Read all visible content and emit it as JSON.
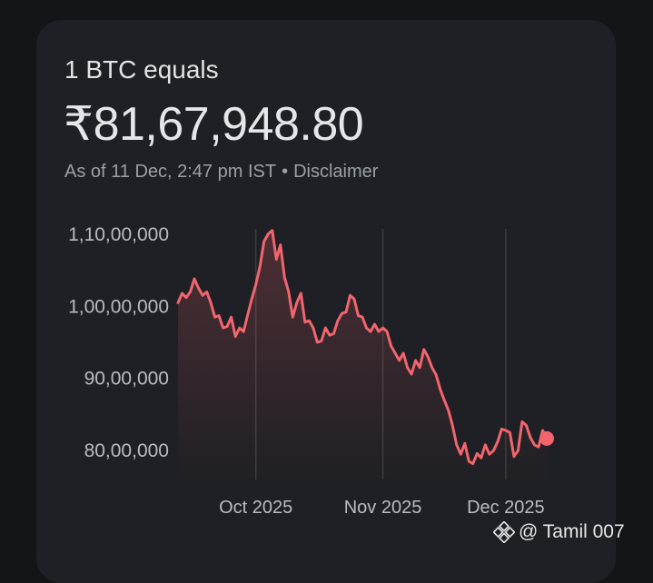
{
  "header": {
    "title": "1 BTC equals",
    "price": "₹81,67,948.80",
    "as_of": "As of 11 Dec, 2:47 pm IST",
    "separator": "•",
    "disclaimer": "Disclaimer"
  },
  "watermark": {
    "text": "@ Tamil 007",
    "icon": "binance-logo-icon"
  },
  "colors": {
    "line": "#f2656d",
    "marker": "#f2656d",
    "background": "#141519",
    "card": "#1f2025"
  },
  "chart_data": {
    "type": "line",
    "title": "",
    "xlabel": "",
    "ylabel": "",
    "y_tick_labels": [
      "80,00,000",
      "90,00,000",
      "1,00,00,000",
      "1,10,00,000"
    ],
    "y_ticks": [
      8000000,
      9000000,
      10000000,
      11000000
    ],
    "x_tick_labels": [
      "Oct 2025",
      "Nov 2025",
      "Dec 2025"
    ],
    "x_ticks": [
      "2025-10-01",
      "2025-11-01",
      "2025-12-01"
    ],
    "ylim": [
      7600000,
      11400000
    ],
    "xlim": [
      "2025-09-12",
      "2025-12-11"
    ],
    "grid": "vertical",
    "series": [
      {
        "name": "",
        "x": [
          "2025-09-12",
          "2025-09-13",
          "2025-09-14",
          "2025-09-15",
          "2025-09-16",
          "2025-09-17",
          "2025-09-18",
          "2025-09-19",
          "2025-09-20",
          "2025-09-21",
          "2025-09-22",
          "2025-09-23",
          "2025-09-24",
          "2025-09-25",
          "2025-09-26",
          "2025-09-27",
          "2025-09-28",
          "2025-09-29",
          "2025-09-30",
          "2025-10-01",
          "2025-10-02",
          "2025-10-03",
          "2025-10-04",
          "2025-10-05",
          "2025-10-06",
          "2025-10-07",
          "2025-10-08",
          "2025-10-09",
          "2025-10-10",
          "2025-10-11",
          "2025-10-12",
          "2025-10-13",
          "2025-10-14",
          "2025-10-15",
          "2025-10-16",
          "2025-10-17",
          "2025-10-18",
          "2025-10-19",
          "2025-10-20",
          "2025-10-21",
          "2025-10-22",
          "2025-10-23",
          "2025-10-24",
          "2025-10-25",
          "2025-10-26",
          "2025-10-27",
          "2025-10-28",
          "2025-10-29",
          "2025-10-30",
          "2025-10-31",
          "2025-11-01",
          "2025-11-02",
          "2025-11-03",
          "2025-11-04",
          "2025-11-05",
          "2025-11-06",
          "2025-11-07",
          "2025-11-08",
          "2025-11-09",
          "2025-11-10",
          "2025-11-11",
          "2025-11-12",
          "2025-11-13",
          "2025-11-14",
          "2025-11-15",
          "2025-11-16",
          "2025-11-17",
          "2025-11-18",
          "2025-11-19",
          "2025-11-20",
          "2025-11-21",
          "2025-11-22",
          "2025-11-23",
          "2025-11-24",
          "2025-11-25",
          "2025-11-26",
          "2025-11-27",
          "2025-11-28",
          "2025-11-29",
          "2025-11-30",
          "2025-12-01",
          "2025-12-02",
          "2025-12-03",
          "2025-12-04",
          "2025-12-05",
          "2025-12-06",
          "2025-12-07",
          "2025-12-08",
          "2025-12-09",
          "2025-12-10",
          "2025-12-11"
        ],
        "y": [
          10050000,
          10180000,
          10120000,
          10200000,
          10380000,
          10250000,
          10150000,
          10200000,
          10050000,
          9850000,
          9870000,
          9700000,
          9720000,
          9850000,
          9580000,
          9700000,
          9650000,
          9880000,
          10100000,
          10300000,
          10550000,
          10900000,
          11000000,
          11050000,
          10650000,
          10850000,
          10400000,
          10200000,
          9850000,
          10050000,
          10180000,
          9780000,
          9800000,
          9700000,
          9500000,
          9520000,
          9700000,
          9600000,
          9620000,
          9800000,
          9900000,
          9920000,
          10150000,
          10100000,
          9870000,
          9850000,
          9700000,
          9650000,
          9750000,
          9650000,
          9700000,
          9650000,
          9450000,
          9350000,
          9250000,
          9350000,
          9150000,
          9060000,
          9250000,
          9150000,
          9400000,
          9300000,
          9150000,
          9050000,
          8850000,
          8700000,
          8560000,
          8350000,
          8080000,
          7950000,
          8100000,
          7850000,
          7820000,
          7960000,
          7900000,
          8080000,
          7950000,
          8000000,
          8120000,
          8300000,
          8280000,
          8250000,
          7920000,
          8000000,
          8400000,
          8350000,
          8180000,
          8080000,
          8050000,
          8280000,
          8167949
        ]
      }
    ],
    "marker": {
      "x": "2025-12-11",
      "y": 8167949
    }
  }
}
